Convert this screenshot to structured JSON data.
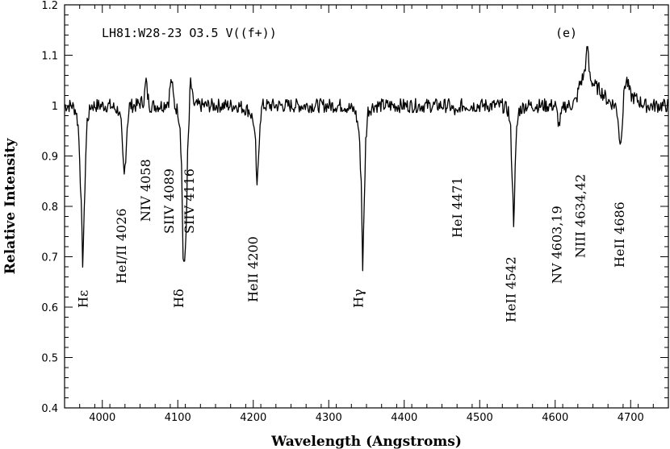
{
  "chart_data": {
    "type": "line",
    "title": "LH81:W28-23 O3.5 V((f+))",
    "panel_label": "(e)",
    "xlabel": "Wavelength (Angstroms)",
    "ylabel": "Relative Intensity",
    "xlim": [
      3950,
      4750
    ],
    "ylim": [
      0.4,
      1.2
    ],
    "x_ticks": [
      4000,
      4100,
      4200,
      4300,
      4400,
      4500,
      4600,
      4700
    ],
    "y_ticks": [
      "0.4",
      "0.5",
      "0.6",
      "0.7",
      "0.8",
      "0.9",
      "1",
      "1.1",
      "1.2"
    ],
    "grid": false,
    "series": [
      {
        "x": [
          3950,
          3960,
          3965,
          3968,
          3970,
          3972,
          3974,
          3976,
          3978,
          3980,
          3985,
          3995,
          4010,
          4022,
          4025,
          4027,
          4029,
          4031,
          4033,
          4036,
          4045,
          4055,
          4058,
          4060,
          4063,
          4070,
          4080,
          4088,
          4090,
          4092,
          4094,
          4096,
          4100,
          4103,
          4105,
          4107,
          4109,
          4111,
          4113,
          4115,
          4116,
          4117,
          4119,
          4122,
          4130,
          4150,
          4180,
          4195,
          4200,
          4203,
          4205,
          4207,
          4209,
          4212,
          4220,
          4250,
          4280,
          4320,
          4335,
          4340,
          4343,
          4345,
          4347,
          4349,
          4352,
          4360,
          4380,
          4420,
          4460,
          4471,
          4474,
          4490,
          4510,
          4530,
          4538,
          4541,
          4543,
          4545,
          4547,
          4549,
          4552,
          4560,
          4580,
          4600,
          4603,
          4605,
          4608,
          4612,
          4620,
          4628,
          4632,
          4638,
          4641,
          4643,
          4645,
          4648,
          4652,
          4660,
          4670,
          4680,
          4683,
          4686,
          4689,
          4692,
          4695,
          4700,
          4710,
          4720,
          4735,
          4750
        ],
        "y": [
          1.0,
          1.0,
          0.99,
          0.96,
          0.9,
          0.8,
          0.69,
          0.78,
          0.9,
          0.97,
          1.0,
          1.0,
          1.0,
          0.99,
          0.96,
          0.9,
          0.86,
          0.9,
          0.96,
          1.0,
          1.0,
          1.01,
          1.05,
          1.02,
          1.0,
          1.0,
          1.0,
          1.01,
          1.04,
          1.05,
          1.02,
          1.0,
          0.99,
          0.96,
          0.88,
          0.7,
          0.68,
          0.75,
          0.9,
          0.97,
          1.02,
          1.05,
          1.02,
          1.0,
          1.0,
          1.0,
          1.0,
          0.99,
          0.97,
          0.92,
          0.83,
          0.9,
          0.97,
          1.0,
          1.0,
          1.0,
          1.0,
          1.0,
          0.99,
          0.95,
          0.85,
          0.68,
          0.8,
          0.93,
          0.99,
          1.0,
          1.0,
          1.0,
          1.0,
          0.98,
          1.0,
          1.0,
          1.0,
          1.0,
          0.99,
          0.95,
          0.86,
          0.77,
          0.87,
          0.95,
          0.99,
          1.0,
          1.0,
          1.0,
          0.98,
          0.96,
          0.98,
          1.0,
          1.0,
          1.01,
          1.04,
          1.06,
          1.09,
          1.12,
          1.07,
          1.05,
          1.04,
          1.03,
          1.01,
          1.0,
          0.98,
          0.92,
          0.97,
          1.04,
          1.05,
          1.02,
          1.01,
          1.0,
          1.0,
          1.0
        ]
      }
    ],
    "line_labels": [
      {
        "text": "Hε",
        "x": 3975
      },
      {
        "text": "HeI/II 4026",
        "x": 4026
      },
      {
        "text": "NIV 4058",
        "x": 4058
      },
      {
        "text": "SIIV 4089",
        "x": 4089
      },
      {
        "text": "Hδ",
        "x": 4102
      },
      {
        "text": "SIIV 4116",
        "x": 4116
      },
      {
        "text": "HeII 4200",
        "x": 4200
      },
      {
        "text": "Hγ",
        "x": 4340
      },
      {
        "text": "HeI 4471",
        "x": 4471
      },
      {
        "text": "HeII 4542",
        "x": 4542
      },
      {
        "text": "NV 4603,19",
        "x": 4603
      },
      {
        "text": "NIII 4634,42",
        "x": 4634
      },
      {
        "text": "HeII 4686",
        "x": 4686
      }
    ]
  }
}
